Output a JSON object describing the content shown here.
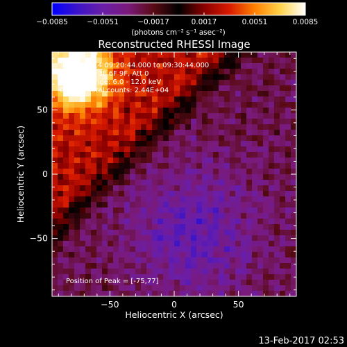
{
  "chart_data": {
    "type": "heatmap",
    "title": "Reconstructed RHESSI Image",
    "xlabel": "Heliocentric X (arcsec)",
    "ylabel": "Heliocentric Y (arcsec)",
    "xlim": [
      -95,
      95
    ],
    "ylim": [
      -95,
      95
    ],
    "x_ticks": [
      -50,
      0,
      50
    ],
    "y_ticks": [
      -50,
      0,
      50
    ],
    "colorbar": {
      "range": [
        -0.0085,
        0.0085
      ],
      "tick_values": [
        -0.0085,
        -0.0051,
        -0.0017,
        0.0017,
        0.0051,
        0.0085
      ],
      "tick_labels": [
        "−0.0085",
        "−0.0051",
        "−0.0017",
        "0.0017",
        "0.0051",
        "0.0085"
      ],
      "units_label": "(photons cm⁻² s⁻¹ asec⁻²)",
      "colors": [
        "#0000ff",
        "#3c14c8",
        "#6a1ea8",
        "#7a1a7a",
        "#5a0a14",
        "#000000",
        "#8a0000",
        "#d81a00",
        "#ff8000",
        "#ffd24a",
        "#ffffff"
      ]
    },
    "annotations": [
      "10-Jan-2014 09:20:44.000 to 09:30:44.000",
      "Detectors: 3F 6F 9F, Att 0",
      "Energy Range: 6.0 - 12.0 keV",
      "Clean    Total counts: 2.44E+04",
      "Position of Peak = [-75,77]"
    ],
    "peak": {
      "x": -75,
      "y": 77
    }
  },
  "footer_date": "13-Feb-2017 02:53"
}
